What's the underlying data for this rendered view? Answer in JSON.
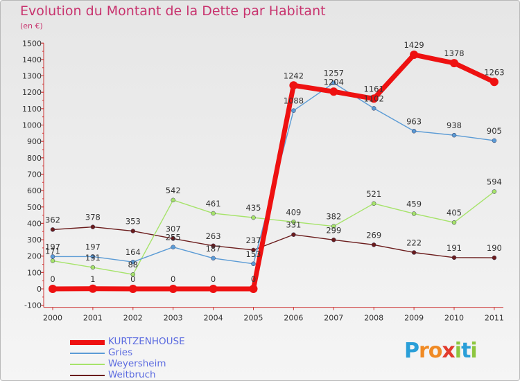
{
  "title": "Evolution du Montant de la Dette par Habitant",
  "subtitle": "(en €)",
  "logo": {
    "chars": [
      "P",
      "r",
      "o",
      "x",
      "i",
      "t",
      "i"
    ],
    "colors": [
      "#2a9fd8",
      "#f08a24",
      "#f08a24",
      "#e23b2e",
      "#8dc63f",
      "#2a9fd8",
      "#8dc63f"
    ]
  },
  "chart_data": {
    "type": "line",
    "x": [
      "2000",
      "2001",
      "2002",
      "2003",
      "2004",
      "2005",
      "2006",
      "2007",
      "2008",
      "2009",
      "2010",
      "2011"
    ],
    "yticks": [
      "-100",
      "0",
      "100",
      "200",
      "300",
      "400",
      "500",
      "600",
      "700",
      "800",
      "900",
      "1000",
      "1100",
      "1200",
      "1300",
      "1400",
      "1500"
    ],
    "ylim": [
      -100,
      1500
    ],
    "grid": false,
    "legend": "bottom-left",
    "series": [
      {
        "name": "Weitbruch",
        "color": "#6b1c1c",
        "values": [
          362,
          378,
          353,
          307,
          263,
          237,
          331,
          299,
          269,
          222,
          191,
          190
        ]
      },
      {
        "name": "Weyersheim",
        "color": "#a6e36a",
        "values": [
          171,
          131,
          88,
          542,
          461,
          435,
          409,
          382,
          521,
          459,
          405,
          594
        ]
      },
      {
        "name": "Gries",
        "color": "#5b9bd5",
        "values": [
          197,
          197,
          164,
          255,
          187,
          153,
          1088,
          1257,
          1102,
          963,
          938,
          905
        ]
      },
      {
        "name": "KURTZENHOUSE",
        "color": "#ee1111",
        "values": [
          0,
          1,
          0,
          0,
          0,
          0,
          1242,
          1204,
          1161,
          1429,
          1378,
          1263
        ]
      }
    ],
    "labels_shown": [
      [
        "362",
        "378",
        "353",
        "307",
        "263",
        "237",
        "331",
        "299",
        "269",
        "222",
        "191",
        "190"
      ],
      [
        "171",
        "131",
        "88",
        "542",
        "461",
        "435",
        "409",
        "382",
        "521",
        "459",
        "405",
        "594"
      ],
      [
        "197",
        "197",
        "164",
        "255",
        "187",
        "153",
        "1088",
        "1257",
        "1102",
        "963",
        "938",
        "905"
      ],
      [
        "0",
        "1",
        "0",
        "0",
        "0",
        "0",
        "1242",
        "1204",
        "1161",
        "1429",
        "1378",
        "1263"
      ]
    ]
  }
}
